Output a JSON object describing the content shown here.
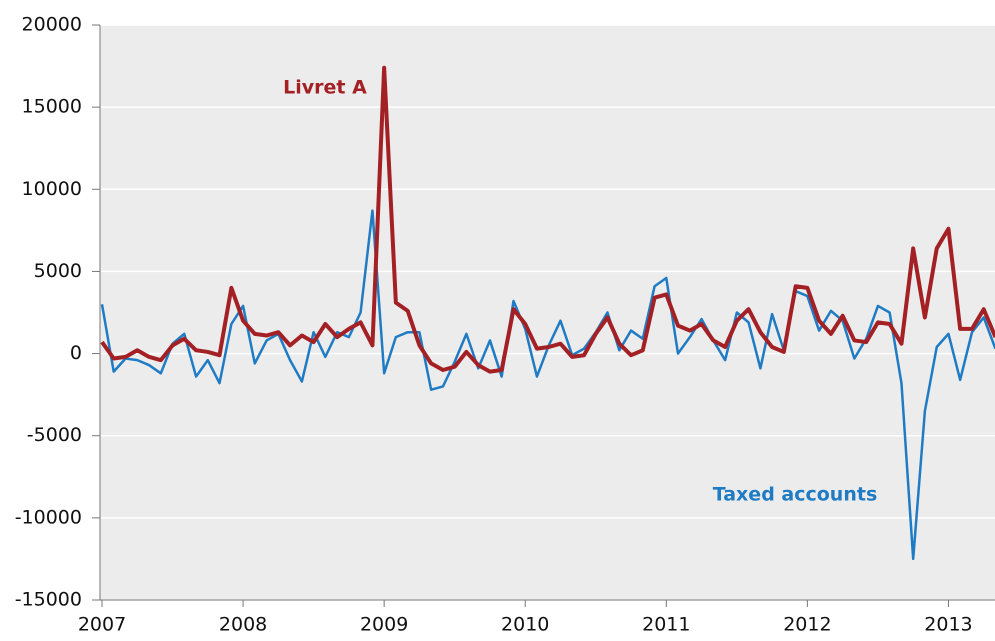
{
  "chart_data": {
    "type": "line",
    "x": [
      2007,
      2007.083,
      2007.167,
      2007.25,
      2007.333,
      2007.417,
      2007.5,
      2007.583,
      2007.667,
      2007.75,
      2007.833,
      2007.917,
      2008,
      2008.083,
      2008.167,
      2008.25,
      2008.333,
      2008.417,
      2008.5,
      2008.583,
      2008.667,
      2008.75,
      2008.833,
      2008.917,
      2009,
      2009.083,
      2009.167,
      2009.25,
      2009.333,
      2009.417,
      2009.5,
      2009.583,
      2009.667,
      2009.75,
      2009.833,
      2009.917,
      2010,
      2010.083,
      2010.167,
      2010.25,
      2010.333,
      2010.417,
      2010.5,
      2010.583,
      2010.667,
      2010.75,
      2010.833,
      2010.917,
      2011,
      2011.083,
      2011.167,
      2011.25,
      2011.333,
      2011.417,
      2011.5,
      2011.583,
      2011.667,
      2011.75,
      2011.833,
      2011.917,
      2012,
      2012.083,
      2012.167,
      2012.25,
      2012.333,
      2012.417,
      2012.5,
      2012.583,
      2012.667,
      2012.75,
      2012.833,
      2012.917,
      2013,
      2013.083,
      2013.167,
      2013.25,
      2013.333
    ],
    "series": [
      {
        "name": "Taxed accounts",
        "color": "#1f7cc4",
        "width": 2.5,
        "values": [
          3000,
          -1100,
          -300,
          -400,
          -700,
          -1200,
          600,
          1200,
          -1400,
          -400,
          -1800,
          1800,
          2900,
          -600,
          800,
          1200,
          -400,
          -1700,
          1300,
          -200,
          1300,
          1000,
          2500,
          8700,
          -1200,
          1000,
          1300,
          1300,
          -2200,
          -2000,
          -500,
          1200,
          -900,
          800,
          -1400,
          3200,
          1500,
          -1400,
          500,
          2000,
          -100,
          300,
          1300,
          2500,
          200,
          1400,
          900,
          4100,
          4600,
          0,
          1000,
          2100,
          800,
          -400,
          2500,
          1900,
          -900,
          2400,
          200,
          3800,
          3500,
          1400,
          2600,
          2000,
          -300,
          900,
          2900,
          2500,
          -1800,
          -12500,
          -3500,
          400,
          1200,
          -1600,
          1300,
          2200,
          300
        ]
      },
      {
        "name": "Livret A",
        "color": "#a32024",
        "width": 4,
        "values": [
          700,
          -300,
          -200,
          200,
          -200,
          -400,
          500,
          900,
          200,
          100,
          -100,
          4000,
          2000,
          1200,
          1100,
          1300,
          500,
          1100,
          700,
          1800,
          1000,
          1500,
          1900,
          500,
          17400,
          3100,
          2600,
          500,
          -600,
          -1000,
          -800,
          100,
          -700,
          -1100,
          -1000,
          2700,
          1800,
          300,
          400,
          600,
          -200,
          -100,
          1200,
          2200,
          600,
          -100,
          200,
          3400,
          3600,
          1700,
          1400,
          1800,
          800,
          400,
          2000,
          2700,
          1300,
          400,
          100,
          4100,
          4000,
          2000,
          1200,
          2300,
          800,
          700,
          1900,
          1800,
          600,
          6400,
          2200,
          6400,
          7600,
          1500,
          1500,
          2700,
          1000
        ]
      }
    ],
    "xlim": [
      2007,
      2013.33
    ],
    "xticks": [
      2007,
      2008,
      2009,
      2010,
      2011,
      2012,
      2013
    ],
    "ylim": [
      -15000,
      20000
    ],
    "yticks": [
      -15000,
      -10000,
      -5000,
      0,
      5000,
      10000,
      15000,
      20000
    ],
    "grid": true
  }
}
